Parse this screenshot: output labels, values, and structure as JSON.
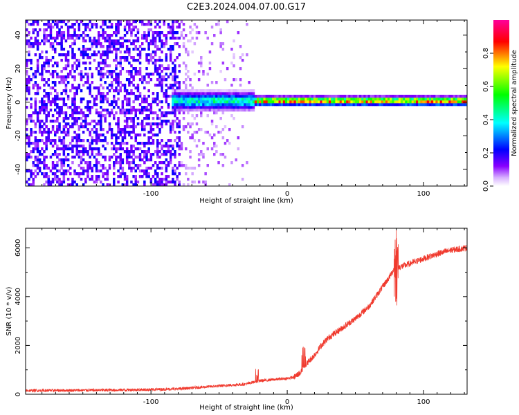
{
  "figure_title": "C2E3.2024.004.07.00.G17",
  "colors": {
    "snr_line": "#f03a2e",
    "colormap": [
      "#ffffff",
      "#8800ff",
      "#0000ff",
      "#00ffff",
      "#00ff00",
      "#ffff00",
      "#ff0000",
      "#ff0099"
    ]
  },
  "chart_data": [
    {
      "type": "heatmap",
      "title": "C2E3.2024.004.07.00.G17",
      "xlabel": "Height of straight line (km)",
      "ylabel": "Frequency (Hz)",
      "xlim": [
        -192,
        132
      ],
      "ylim": [
        -50,
        49
      ],
      "x_ticks": [
        -100,
        0,
        100
      ],
      "x_tick_labels": [
        "-100",
        "0",
        "100"
      ],
      "y_ticks": [
        -40,
        -20,
        0,
        20,
        40
      ],
      "y_tick_labels": [
        "-40",
        "-20",
        "0",
        "20",
        "40"
      ],
      "grid": false,
      "colorbar": {
        "label": "Normalized spectral amplitude",
        "range": [
          0,
          1
        ],
        "ticks": [
          0.0,
          0.2,
          0.4,
          0.6,
          0.8
        ],
        "tick_labels": [
          "0.0",
          "0.2",
          "0.4",
          "0.6",
          "0.8"
        ],
        "colormap": "white-purple-blue-cyan-green-yellow-red-magenta"
      },
      "description_of_field": [
        {
          "x_range": [
            -192,
            -80
          ],
          "freq_range": [
            -50,
            49
          ],
          "pattern": "dense random noise",
          "amplitude": 0.15
        },
        {
          "x_range": [
            -80,
            -25
          ],
          "freq_range": [
            -50,
            49
          ],
          "pattern": "sparse fading noise",
          "amplitude": 0.07
        },
        {
          "x_range": [
            -85,
            -25
          ],
          "freq_center": 0,
          "freq_halfwidth": 4,
          "pattern": "signal band emerging",
          "amplitude": 0.45
        },
        {
          "x_range": [
            -25,
            132
          ],
          "freq_center": 0,
          "freq_halfwidth": 2,
          "pattern": "strong narrow signal band",
          "amplitude": 0.85
        }
      ]
    },
    {
      "type": "line",
      "xlabel": "Height of straight line (km)",
      "ylabel": "SNR (10 * v/v)",
      "xlim": [
        -192,
        132
      ],
      "ylim": [
        0,
        6800
      ],
      "x_ticks": [
        -100,
        0,
        100
      ],
      "x_tick_labels": [
        "-100",
        "0",
        "100"
      ],
      "y_ticks": [
        0,
        2000,
        4000,
        6000
      ],
      "y_tick_labels": [
        "0",
        "2000",
        "4000",
        "6000"
      ],
      "grid": false,
      "series": [
        {
          "x": [
            -192,
            -160,
            -130,
            -100,
            -80,
            -60,
            -40,
            -30,
            -25,
            -20,
            -10,
            0,
            5,
            10,
            12,
            15,
            20,
            25,
            30,
            40,
            50,
            60,
            65,
            70,
            75,
            78,
            80,
            82,
            85,
            90,
            100,
            110,
            120,
            132
          ],
          "y": [
            150,
            160,
            170,
            190,
            220,
            300,
            380,
            420,
            500,
            550,
            600,
            650,
            700,
            900,
            1100,
            1300,
            1600,
            2000,
            2300,
            2700,
            3100,
            3600,
            4000,
            4400,
            4800,
            5100,
            5300,
            5200,
            5250,
            5350,
            5550,
            5750,
            5900,
            6000
          ],
          "noise": "high-frequency jitter of roughly ±150 around the trend, spikes near x=-22, 12 and 80 (up to ~6800, down to ~3100)"
        }
      ]
    }
  ]
}
